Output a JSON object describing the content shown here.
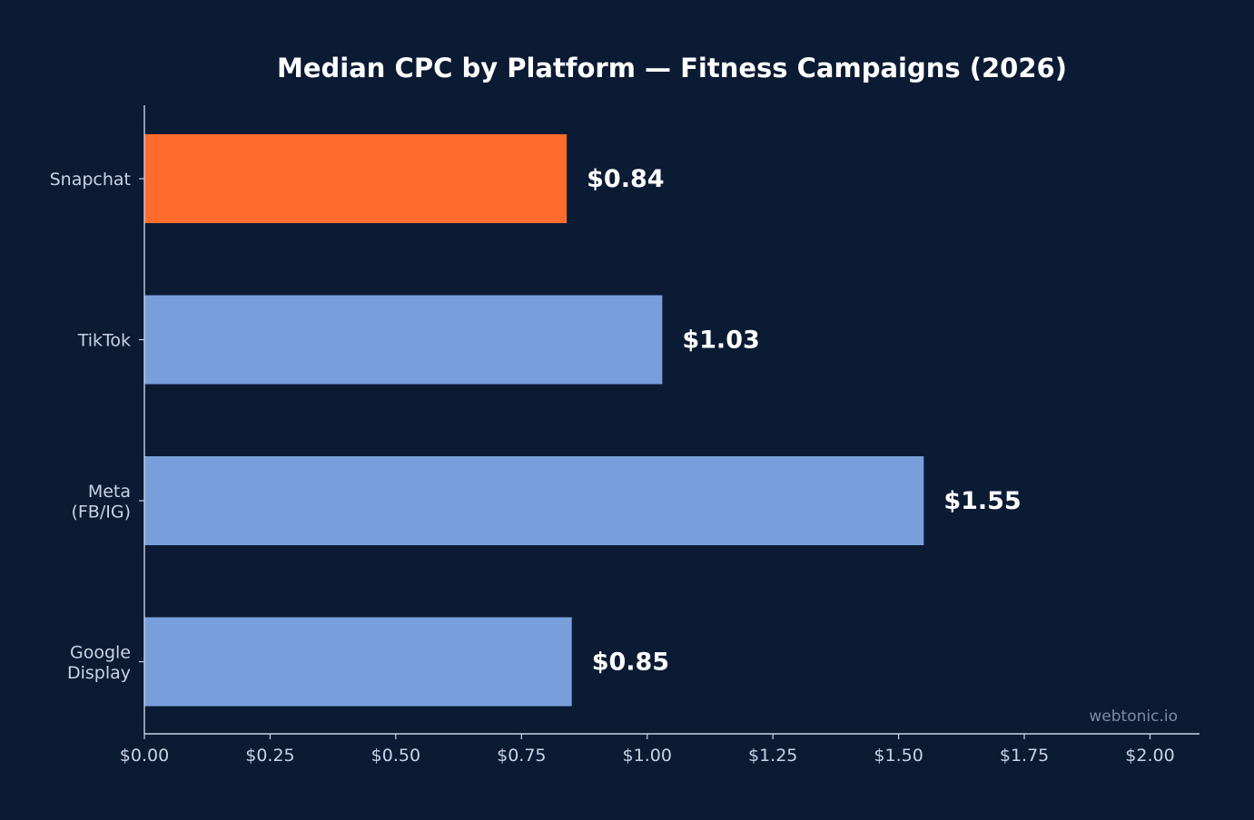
{
  "chart_data": {
    "type": "bar",
    "orientation": "horizontal",
    "title": "Median CPC by Platform — Fitness Campaigns (2026)",
    "categories": [
      "Snapchat",
      "TikTok",
      "Meta\n(FB/IG)",
      "Google\nDisplay"
    ],
    "values": [
      0.84,
      1.03,
      1.55,
      0.85
    ],
    "value_labels": [
      "$0.84",
      "$1.03",
      "$1.55",
      "$0.85"
    ],
    "bar_colors": [
      "#ff6b2d",
      "#789fdb",
      "#789fdb",
      "#789fdb"
    ],
    "x_ticks": [
      0,
      0.25,
      0.5,
      0.75,
      1.0,
      1.25,
      1.5,
      1.75,
      2.0
    ],
    "x_tick_labels": [
      "$0.00",
      "$0.25",
      "$0.50",
      "$0.75",
      "$1.00",
      "$1.25",
      "$1.50",
      "$1.75",
      "$2.00"
    ],
    "xlim": [
      0,
      2.1
    ],
    "xlabel": "",
    "ylabel": "",
    "grid": false,
    "legend": "none"
  },
  "watermark": "webtonic.io",
  "colors": {
    "background": "#0c1b34",
    "axis": "#c9d3e3",
    "highlight": "#ff6b2d",
    "bar": "#789fdb"
  }
}
